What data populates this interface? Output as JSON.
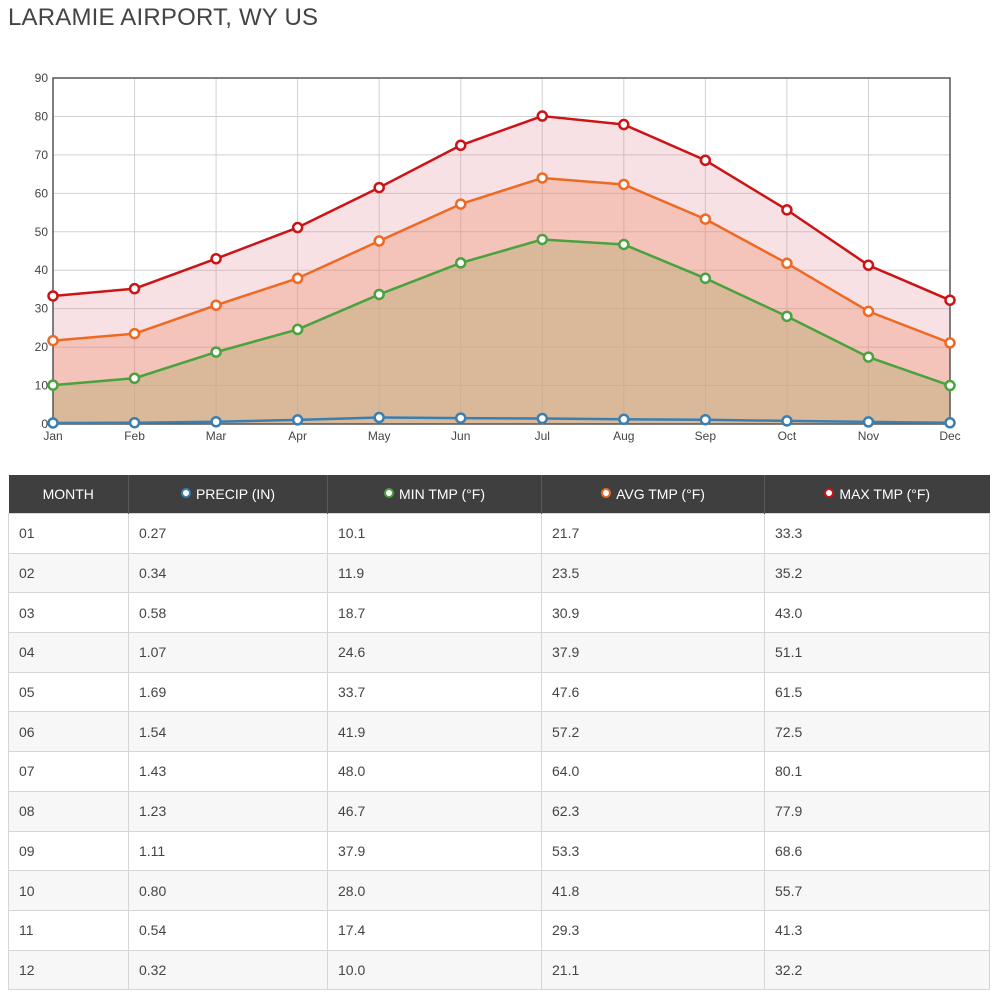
{
  "title": "LARAMIE AIRPORT, WY US",
  "colors": {
    "precip": "#3a7fb2",
    "min": "#4aa23f",
    "avg": "#ee6a24",
    "max": "#cc1316",
    "header_bg": "#3f3f3f"
  },
  "chart_data": {
    "type": "line",
    "categories": [
      "Jan",
      "Feb",
      "Mar",
      "Apr",
      "May",
      "Jun",
      "Jul",
      "Aug",
      "Sep",
      "Oct",
      "Nov",
      "Dec"
    ],
    "ylim": [
      0,
      90
    ],
    "yticks": [
      0,
      10,
      20,
      30,
      40,
      50,
      60,
      70,
      80,
      90
    ],
    "grid": true,
    "series": [
      {
        "name": "PRECIP (IN)",
        "color": "#3a7fb2",
        "fill": "none",
        "values": [
          0.27,
          0.34,
          0.58,
          1.07,
          1.69,
          1.54,
          1.43,
          1.23,
          1.11,
          0.8,
          0.54,
          0.32
        ]
      },
      {
        "name": "MIN TMP (°F)",
        "color": "#4aa23f",
        "fill": "rgba(196,176,130,0.55)",
        "values": [
          10.1,
          11.9,
          18.7,
          24.6,
          33.7,
          41.9,
          48.0,
          46.7,
          37.9,
          28.0,
          17.4,
          10.0
        ]
      },
      {
        "name": "AVG TMP (°F)",
        "color": "#ee6a24",
        "fill": "rgba(238,140,110,0.35)",
        "values": [
          21.7,
          23.5,
          30.9,
          37.9,
          47.6,
          57.2,
          64.0,
          62.3,
          53.3,
          41.8,
          29.3,
          21.1
        ]
      },
      {
        "name": "MAX TMP (°F)",
        "color": "#cc1316",
        "fill": "rgba(220,120,130,0.22)",
        "values": [
          33.3,
          35.2,
          43.0,
          51.1,
          61.5,
          72.5,
          80.1,
          77.9,
          68.6,
          55.7,
          41.3,
          32.2
        ]
      }
    ]
  },
  "table": {
    "headers": [
      "MONTH",
      "PRECIP (IN)",
      "MIN TMP (°F)",
      "AVG TMP (°F)",
      "MAX TMP (°F)"
    ],
    "rows": [
      [
        "01",
        "0.27",
        "10.1",
        "21.7",
        "33.3"
      ],
      [
        "02",
        "0.34",
        "11.9",
        "23.5",
        "35.2"
      ],
      [
        "03",
        "0.58",
        "18.7",
        "30.9",
        "43.0"
      ],
      [
        "04",
        "1.07",
        "24.6",
        "37.9",
        "51.1"
      ],
      [
        "05",
        "1.69",
        "33.7",
        "47.6",
        "61.5"
      ],
      [
        "06",
        "1.54",
        "41.9",
        "57.2",
        "72.5"
      ],
      [
        "07",
        "1.43",
        "48.0",
        "64.0",
        "80.1"
      ],
      [
        "08",
        "1.23",
        "46.7",
        "62.3",
        "77.9"
      ],
      [
        "09",
        "1.11",
        "37.9",
        "53.3",
        "68.6"
      ],
      [
        "10",
        "0.80",
        "28.0",
        "41.8",
        "55.7"
      ],
      [
        "11",
        "0.54",
        "17.4",
        "29.3",
        "41.3"
      ],
      [
        "12",
        "0.32",
        "10.0",
        "21.1",
        "32.2"
      ]
    ]
  }
}
